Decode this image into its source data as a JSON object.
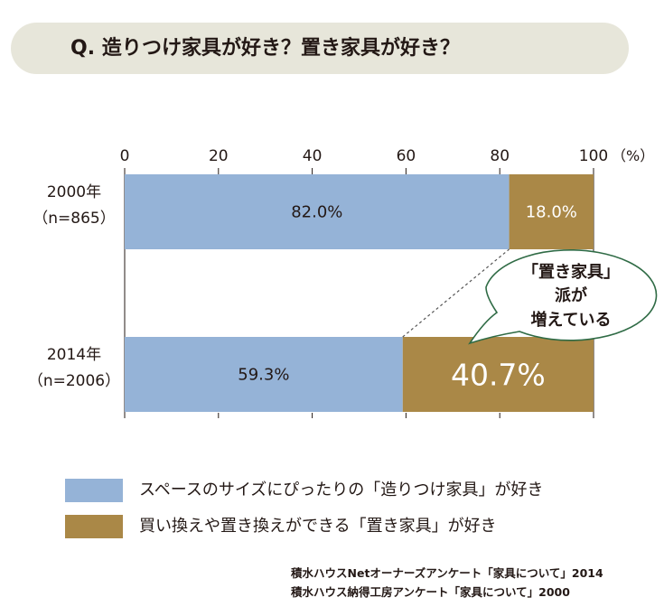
{
  "title": "Q. 造りつけ家具が好き？置き家具が好き？",
  "chart_data": {
    "type": "bar",
    "orientation": "horizontal",
    "stacked": true,
    "x_ticks": [
      "0",
      "20",
      "40",
      "60",
      "80",
      "100"
    ],
    "x_unit": "（%）",
    "xlim": [
      0,
      100
    ],
    "categories": [
      {
        "year": "2000年",
        "n": "（n=865）"
      },
      {
        "year": "2014年",
        "n": "（n=2006）"
      }
    ],
    "series": [
      {
        "name": "スペースのサイズにぴったりの「造りつけ家具」が好き",
        "color": "#95b3d7",
        "values": [
          82.0,
          59.3
        ],
        "labels": [
          "82.0%",
          "59.3%"
        ]
      },
      {
        "name": "買い換えや置き換えができる「置き家具」が好き",
        "color": "#aa8847",
        "values": [
          18.0,
          40.7
        ],
        "labels": [
          "18.0%",
          "40.7%"
        ]
      }
    ],
    "annotation": {
      "lines": [
        "「置き家具」",
        "派が",
        "増えている"
      ]
    },
    "grid": false,
    "legend_position": "bottom"
  },
  "sources": [
    "積水ハウスNetオーナーズアンケート「家具について」2014",
    "積水ハウス納得工房アンケート「家具について」2000"
  ]
}
